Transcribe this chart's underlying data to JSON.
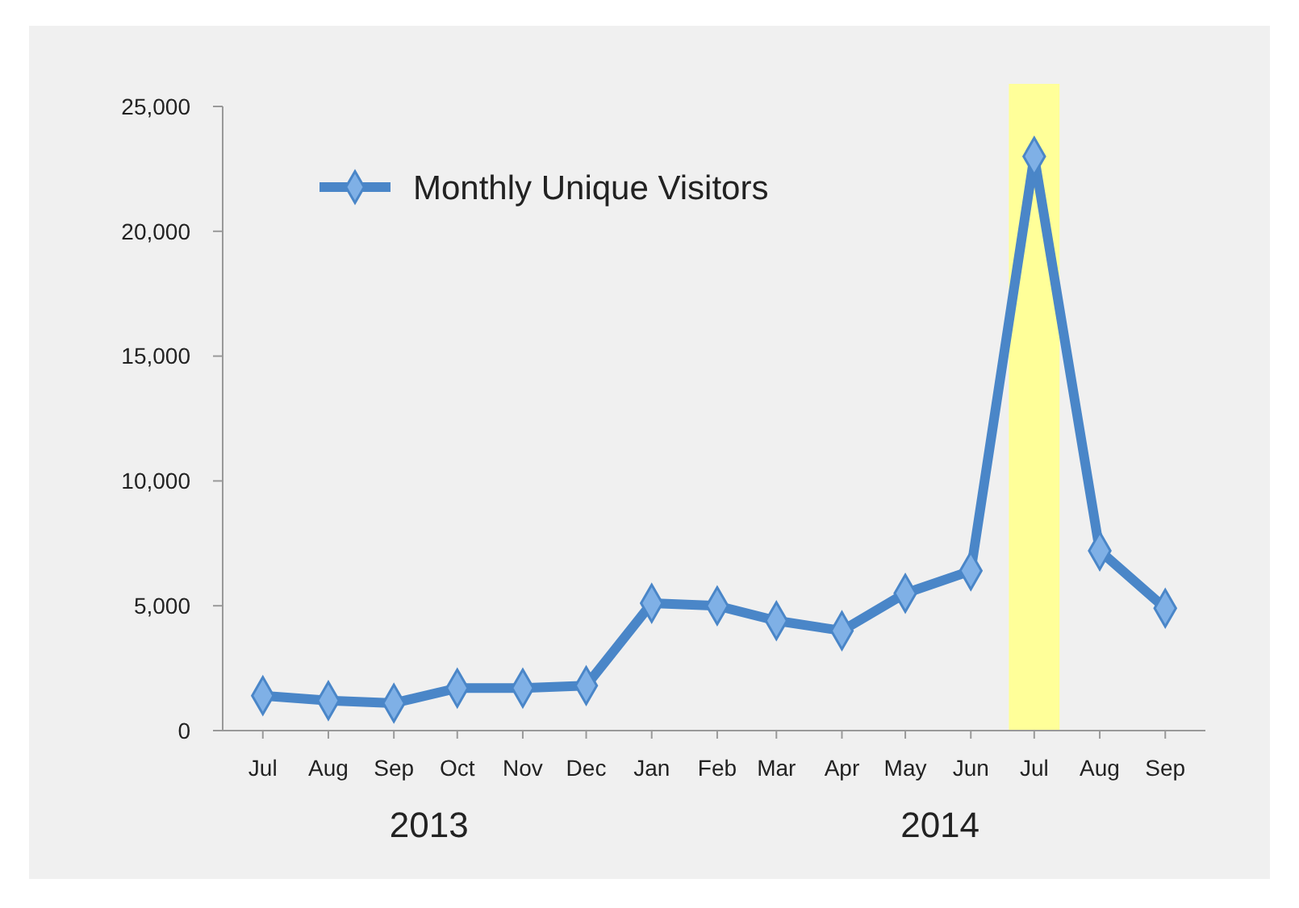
{
  "chart_data": {
    "type": "line",
    "x": [
      "2013-07",
      "2013-08",
      "2013-09",
      "2013-10",
      "2013-11",
      "2013-12",
      "2014-01",
      "2014-02",
      "2014-03",
      "2014-04",
      "2014-05",
      "2014-06",
      "2014-07",
      "2014-08",
      "2014-09"
    ],
    "series": [
      {
        "name": "Monthly Unique Visitors",
        "color": "#4a86c8",
        "values": [
          1400,
          1200,
          1100,
          1700,
          1700,
          1800,
          5100,
          5000,
          4400,
          4000,
          5500,
          6400,
          23000,
          7200,
          4900
        ]
      }
    ],
    "xlim": [
      "2013-06-12",
      "2014-09-20"
    ],
    "xticks": [
      {
        "value": "2013-07",
        "label": "Jul"
      },
      {
        "value": "2013-08",
        "label": "Aug"
      },
      {
        "value": "2013-09",
        "label": "Sep"
      },
      {
        "value": "2013-10",
        "label": "Oct"
      },
      {
        "value": "2013-11",
        "label": "Nov"
      },
      {
        "value": "2013-12",
        "label": "Dec"
      },
      {
        "value": "2014-01",
        "label": "Jan"
      },
      {
        "value": "2014-02",
        "label": "Feb"
      },
      {
        "value": "2014-03",
        "label": "Mar"
      },
      {
        "value": "2014-04",
        "label": "Apr"
      },
      {
        "value": "2014-05",
        "label": "May"
      },
      {
        "value": "2014-06",
        "label": "Jun"
      },
      {
        "value": "2014-07",
        "label": "Jul"
      },
      {
        "value": "2014-08",
        "label": "Aug"
      },
      {
        "value": "2014-09",
        "label": "Sep"
      }
    ],
    "ylim": [
      0,
      25000
    ],
    "yticks": [
      {
        "value": 0,
        "label": "0"
      },
      {
        "value": 5000,
        "label": "5,000"
      },
      {
        "value": 10000,
        "label": "10,000"
      },
      {
        "value": 15000,
        "label": "15,000"
      },
      {
        "value": 20000,
        "label": "20,000"
      },
      {
        "value": 25000,
        "label": "25,000"
      }
    ],
    "bands": [
      {
        "axis": "x",
        "from": "2014-06-19",
        "to": "2014-07-13",
        "color": "#ffff99"
      }
    ],
    "annotations": [
      "2013",
      "2014"
    ],
    "legend": "top left",
    "marker": "diamond",
    "line_style": "solid",
    "grid": false
  }
}
